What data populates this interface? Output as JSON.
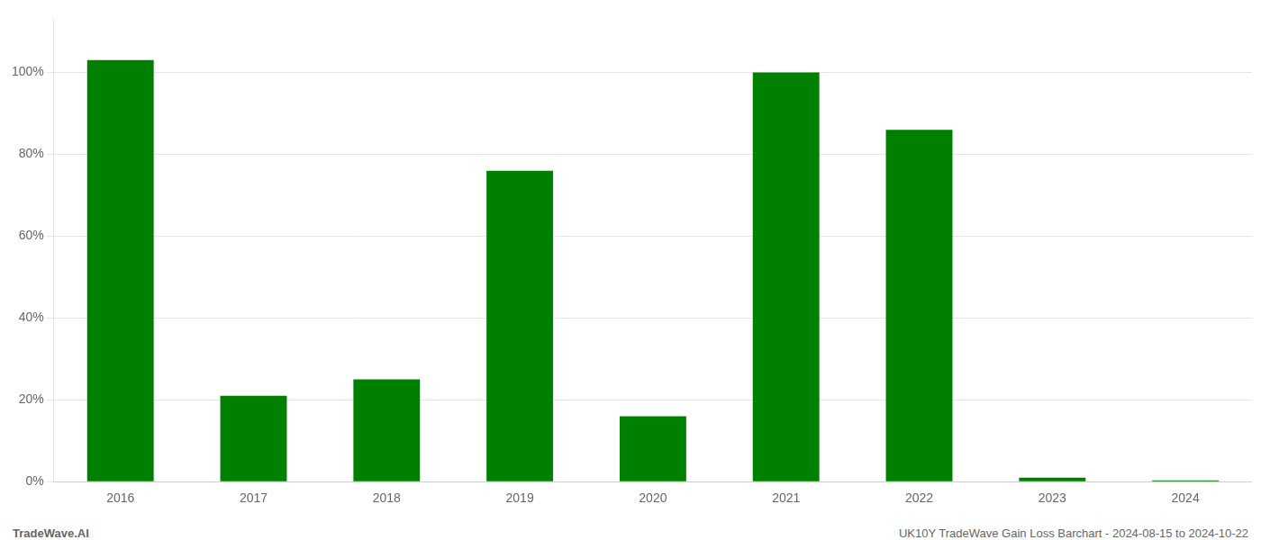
{
  "chart_data": {
    "type": "bar",
    "categories": [
      "2016",
      "2017",
      "2018",
      "2019",
      "2020",
      "2021",
      "2022",
      "2023",
      "2024"
    ],
    "values": [
      1.03,
      0.21,
      0.25,
      0.76,
      0.16,
      1.0,
      0.86,
      0.01,
      0.003
    ],
    "color": "#008000",
    "ylim": [
      0,
      1.13
    ],
    "yticks": [
      {
        "value": 0.0,
        "label": "0%"
      },
      {
        "value": 0.2,
        "label": "20%"
      },
      {
        "value": 0.4,
        "label": "40%"
      },
      {
        "value": 0.6,
        "label": "60%"
      },
      {
        "value": 0.8,
        "label": "80%"
      },
      {
        "value": 1.0,
        "label": "100%"
      }
    ],
    "grid": true,
    "annotations": [
      "TradeWave.AI",
      "UK10Y TradeWave Gain Loss Barchart - 2024-08-15 to 2024-10-22"
    ]
  }
}
